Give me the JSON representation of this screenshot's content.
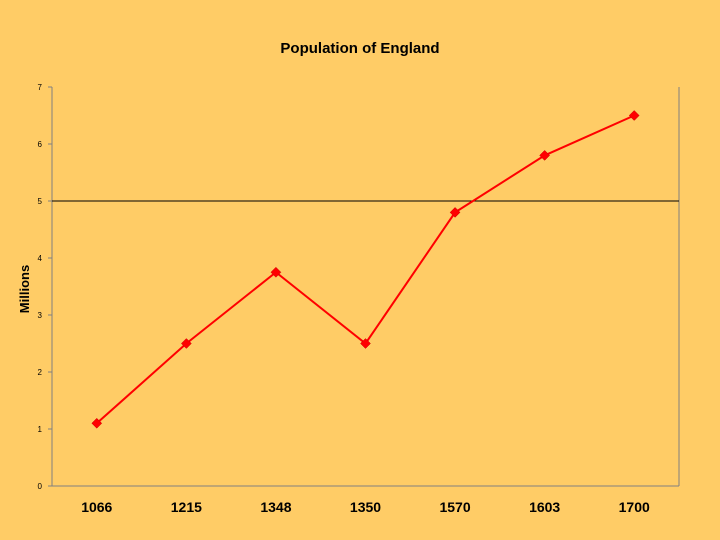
{
  "chart_data": {
    "type": "line",
    "title": "Population of England",
    "xlabel": "",
    "ylabel": "Millions",
    "categories": [
      "1066",
      "1215",
      "1348",
      "1350",
      "1570",
      "1603",
      "1700"
    ],
    "series": [
      {
        "values": [
          1.1,
          2.5,
          3.75,
          2.5,
          4.8,
          5.8,
          6.5
        ]
      }
    ],
    "ylim": [
      0,
      7
    ],
    "yticks": [
      "0",
      "1",
      "2",
      "3",
      "4",
      "5",
      "6",
      "7"
    ],
    "gridlines": [
      5
    ],
    "legend": "none",
    "colors": {
      "background": "#FFCC66",
      "line": "#FF0000",
      "marker": "#FF0000",
      "axis": "#808080",
      "gridline": "#000000"
    },
    "marker": "diamond"
  }
}
